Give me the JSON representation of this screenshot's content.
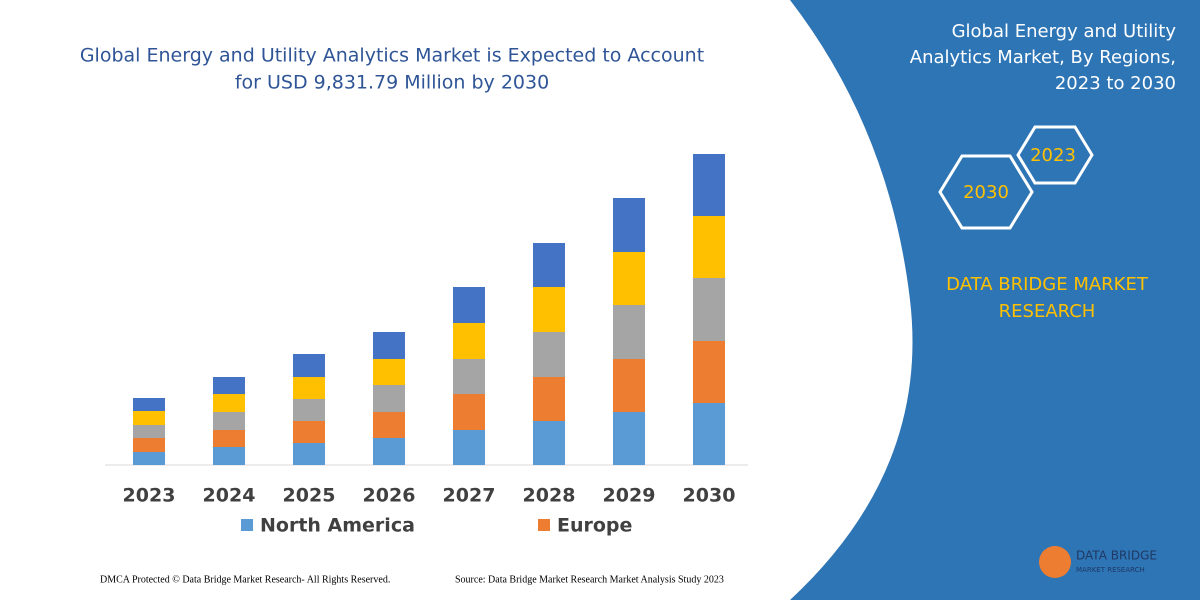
{
  "chart_data": {
    "type": "bar",
    "stacked": true,
    "title": [
      "Global Energy and Utility Analytics Market is Expected to Account",
      "for USD 9,831.79 Million by 2030"
    ],
    "categories": [
      "2023",
      "2024",
      "2025",
      "2026",
      "2027",
      "2028",
      "2029",
      "2030"
    ],
    "series": [
      {
        "name": "North America",
        "color": "#5b9bd5",
        "values": [
          13,
          18,
          22,
          27,
          35,
          44,
          53,
          62
        ]
      },
      {
        "name": "Europe",
        "color": "#ed7d31",
        "values": [
          14,
          17,
          22,
          26,
          36,
          44,
          53,
          62
        ]
      },
      {
        "color": "#a5a5a5",
        "values": [
          13,
          18,
          22,
          27,
          35,
          45,
          54,
          63
        ]
      },
      {
        "color": "#ffc000",
        "values": [
          14,
          18,
          22,
          26,
          36,
          45,
          53,
          62
        ]
      },
      {
        "color": "#4472c4",
        "values": [
          13,
          17,
          23,
          27,
          36,
          44,
          54,
          62
        ]
      }
    ]
  },
  "panel": {
    "title": [
      "Global Energy and Utility",
      "Analytics Market, By Regions,",
      "2023 to 2030"
    ],
    "hexagons": [
      "2023",
      "2030"
    ],
    "brand": [
      "DATA BRIDGE MARKET",
      "RESEARCH"
    ],
    "logo": [
      "DATA BRIDGE",
      "MARKET RESEARCH"
    ]
  },
  "footer": {
    "left": "DMCA Protected © Data Bridge Market Research-  All Rights Reserved.",
    "right": "Source: Data Bridge Market Research  Market Analysis Study 2023"
  }
}
